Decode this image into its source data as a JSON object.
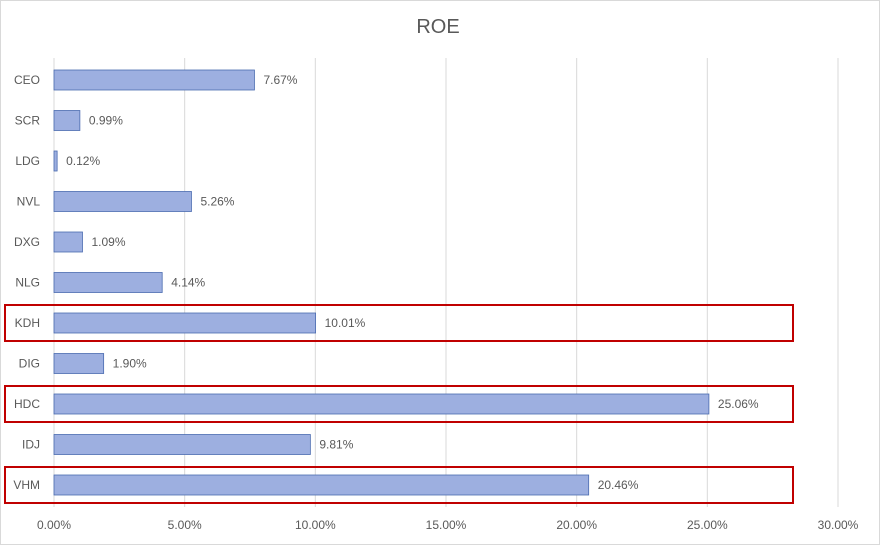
{
  "chart_data": {
    "type": "bar",
    "orientation": "horizontal",
    "title": "ROE",
    "categories": [
      "CEO",
      "SCR",
      "LDG",
      "NVL",
      "DXG",
      "NLG",
      "KDH",
      "DIG",
      "HDC",
      "IDJ",
      "VHM"
    ],
    "values": [
      7.67,
      0.99,
      0.12,
      5.26,
      1.09,
      4.14,
      10.01,
      1.9,
      25.06,
      9.81,
      20.46
    ],
    "value_labels": [
      "7.67%",
      "0.99%",
      "0.12%",
      "5.26%",
      "1.09%",
      "4.14%",
      "10.01%",
      "1.90%",
      "25.06%",
      "9.81%",
      "20.46%"
    ],
    "xlim": [
      0,
      30
    ],
    "x_ticks": [
      0,
      5,
      10,
      15,
      20,
      25,
      30
    ],
    "x_tick_labels": [
      "0.00%",
      "5.00%",
      "10.00%",
      "15.00%",
      "20.00%",
      "25.00%",
      "30.00%"
    ],
    "xlabel": "",
    "ylabel": "",
    "grid": "vertical",
    "legend": "none",
    "highlighted": [
      "KDH",
      "HDC",
      "VHM"
    ],
    "colors": {
      "bar_fill": "#9dafe0",
      "bar_stroke": "#4a6bb0",
      "grid": "#d9d9d9",
      "highlight_box": "#c00000",
      "text": "#595959"
    }
  }
}
